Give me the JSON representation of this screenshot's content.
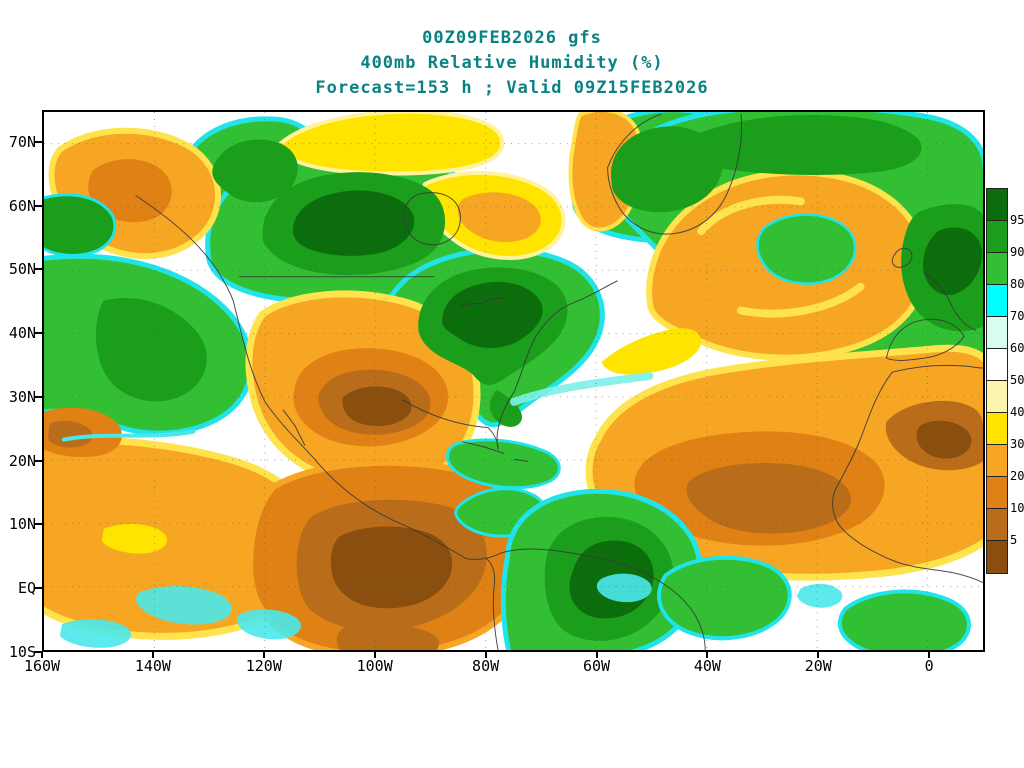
{
  "title": {
    "line1": "00Z09FEB2026 gfs",
    "line2": "400mb Relative Humidity (%)",
    "line3": "Forecast=153 h ; Valid 09Z15FEB2026"
  },
  "axes": {
    "x": {
      "labels": [
        "160W",
        "140W",
        "120W",
        "100W",
        "80W",
        "60W",
        "40W",
        "20W",
        "0"
      ]
    },
    "y": {
      "labels": [
        "70N",
        "60N",
        "50N",
        "40N",
        "30N",
        "20N",
        "10N",
        "EQ",
        "10S"
      ]
    }
  },
  "colorbar": {
    "labels": [
      "95",
      "90",
      "80",
      "70",
      "60",
      "50",
      "40",
      "30",
      "20",
      "10",
      "5"
    ],
    "colors": [
      "#0b6d0b",
      "#1b9e1b",
      "#33bf33",
      "#00ffff",
      "#d9fcf0",
      "#ffffff",
      "#fdf5ae",
      "#ffe400",
      "#f7a624",
      "#df8114",
      "#b96d1a",
      "#8a4f0e"
    ]
  },
  "chart_data": {
    "type": "heatmap",
    "title": "400mb Relative Humidity (%)",
    "model_run": "00Z09FEB2026 gfs",
    "forecast_hour": 153,
    "valid_time": "09Z15FEB2026",
    "units": "%",
    "colorbar_levels": [
      95,
      90,
      80,
      70,
      60,
      50,
      40,
      30,
      20,
      10,
      5
    ],
    "x_tick_labels": [
      "160W",
      "140W",
      "120W",
      "100W",
      "80W",
      "60W",
      "40W",
      "20W",
      "0"
    ],
    "y_tick_labels": [
      "70N",
      "60N",
      "50N",
      "40N",
      "30N",
      "20N",
      "10N",
      "EQ",
      "10S"
    ],
    "legend_position": "right",
    "grid": "dotted"
  }
}
